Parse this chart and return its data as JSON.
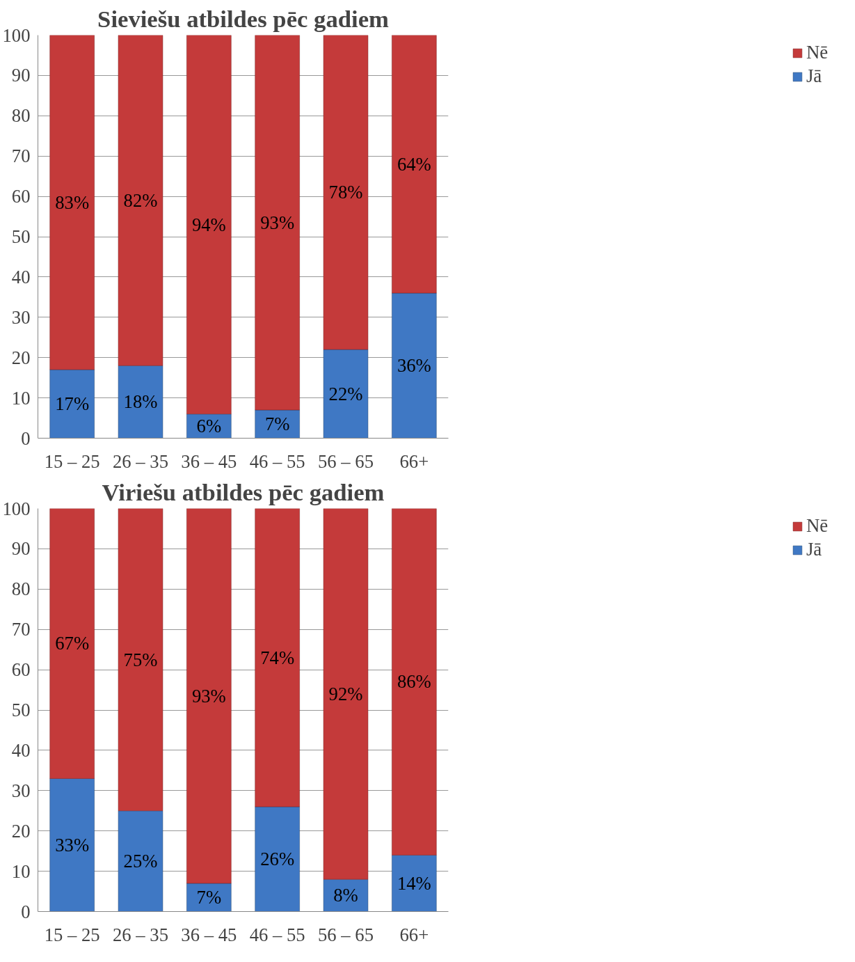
{
  "chart_data": [
    {
      "type": "bar",
      "title": "Sieviešu atbildes pēc gadiem",
      "stacked": true,
      "categories": [
        "15 – 25",
        "26 – 35",
        "36 – 45",
        "46 – 55",
        "56 – 65",
        "66+"
      ],
      "ylim": [
        0,
        100
      ],
      "yticks": [
        0,
        10,
        20,
        30,
        40,
        50,
        60,
        70,
        80,
        90,
        100
      ],
      "grid": "y",
      "legend": "right",
      "series": [
        {
          "name": "Jā",
          "color": "#3f78c4",
          "values": [
            17,
            18,
            6,
            7,
            22,
            36
          ],
          "value_labels": [
            "17%",
            "18%",
            "6%",
            "7%",
            "22%",
            "36%"
          ]
        },
        {
          "name": "Nē",
          "color": "#c43a3a",
          "values": [
            83,
            82,
            94,
            93,
            78,
            64
          ],
          "value_labels": [
            "83%",
            "82%",
            "94%",
            "93%",
            "78%",
            "64%"
          ]
        }
      ]
    },
    {
      "type": "bar",
      "title": "Viriešu atbildes pēc gadiem",
      "stacked": true,
      "categories": [
        "15 – 25",
        "26 – 35",
        "36 – 45",
        "46 – 55",
        "56 – 65",
        "66+"
      ],
      "ylim": [
        0,
        100
      ],
      "yticks": [
        0,
        10,
        20,
        30,
        40,
        50,
        60,
        70,
        80,
        90,
        100
      ],
      "grid": "y",
      "legend": "right",
      "series": [
        {
          "name": "Jā",
          "color": "#3f78c4",
          "values": [
            33,
            25,
            7,
            26,
            8,
            14
          ],
          "value_labels": [
            "33%",
            "25%",
            "7%",
            "26%",
            "8%",
            "14%"
          ]
        },
        {
          "name": "Nē",
          "color": "#c43a3a",
          "values": [
            67,
            75,
            93,
            74,
            92,
            86
          ],
          "value_labels": [
            "67%",
            "75%",
            "93%",
            "74%",
            "92%",
            "86%"
          ]
        }
      ]
    }
  ]
}
